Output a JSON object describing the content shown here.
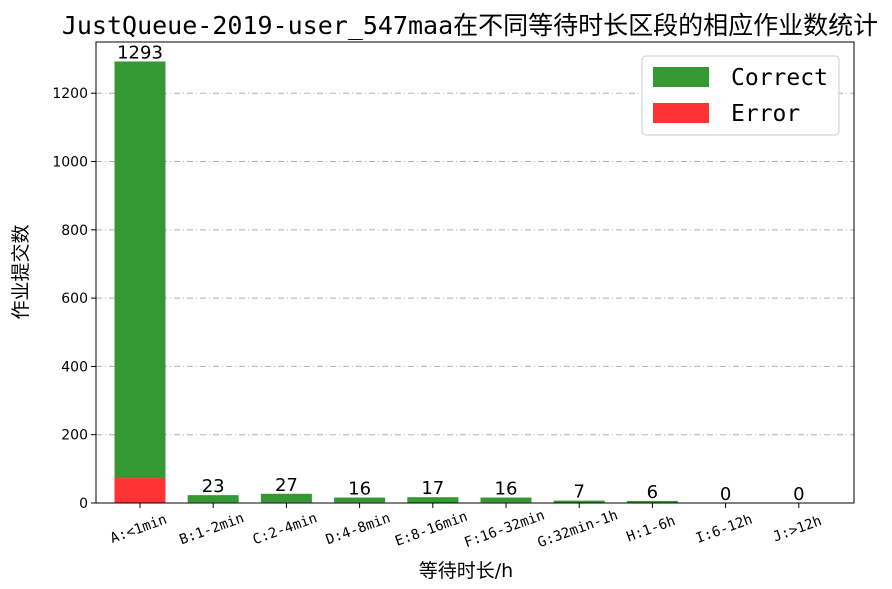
{
  "chart_data": {
    "type": "bar",
    "stacked": true,
    "title": "JustQueue-2019-user_547maa在不同等待时长区段的相应作业数统计",
    "xlabel": "等待时长/h",
    "ylabel": "作业提交数",
    "categories": [
      "A:<1min",
      "B:1-2min",
      "C:2-4min",
      "D:4-8min",
      "E:8-16min",
      "F:16-32min",
      "G:32min-1h",
      "H:1-6h",
      "I:6-12h",
      "J:>12h"
    ],
    "series": [
      {
        "name": "Correct",
        "color": "#339933",
        "values": [
          1220,
          21,
          25,
          14,
          16,
          14,
          6,
          5,
          0,
          0
        ]
      },
      {
        "name": "Error",
        "color": "#ff3333",
        "values": [
          73,
          2,
          2,
          2,
          1,
          2,
          1,
          1,
          0,
          0
        ]
      }
    ],
    "totals": [
      "1293",
      "23",
      "27",
      "16",
      "17",
      "16",
      "7",
      "6",
      "0",
      "0"
    ],
    "ylim": [
      0,
      1350
    ],
    "yticks": [
      0,
      200,
      400,
      600,
      800,
      1000,
      1200
    ],
    "grid": "horizontal dash-dot",
    "legend": {
      "position": "top-right",
      "entries": [
        "Correct",
        "Error"
      ]
    }
  }
}
